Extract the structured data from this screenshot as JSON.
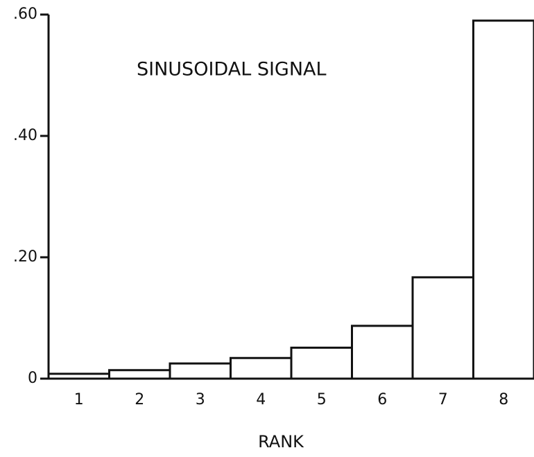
{
  "chart_data": {
    "type": "bar",
    "title": "SINUSOIDAL SIGNAL",
    "x_label": "RANK",
    "categories": [
      "1",
      "2",
      "3",
      "4",
      "5",
      "6",
      "7",
      "8"
    ],
    "values": [
      0.008,
      0.014,
      0.025,
      0.034,
      0.051,
      0.087,
      0.167,
      0.59
    ],
    "color": "#ffffff",
    "ylim": [
      0,
      0.6
    ],
    "yticks": [
      0,
      {
        "value": 0.2,
        "label": ".20"
      },
      {
        "value": 0.4,
        "label": ".40"
      },
      {
        "value": 0.6,
        "label": ".60"
      }
    ],
    "grid": false
  }
}
